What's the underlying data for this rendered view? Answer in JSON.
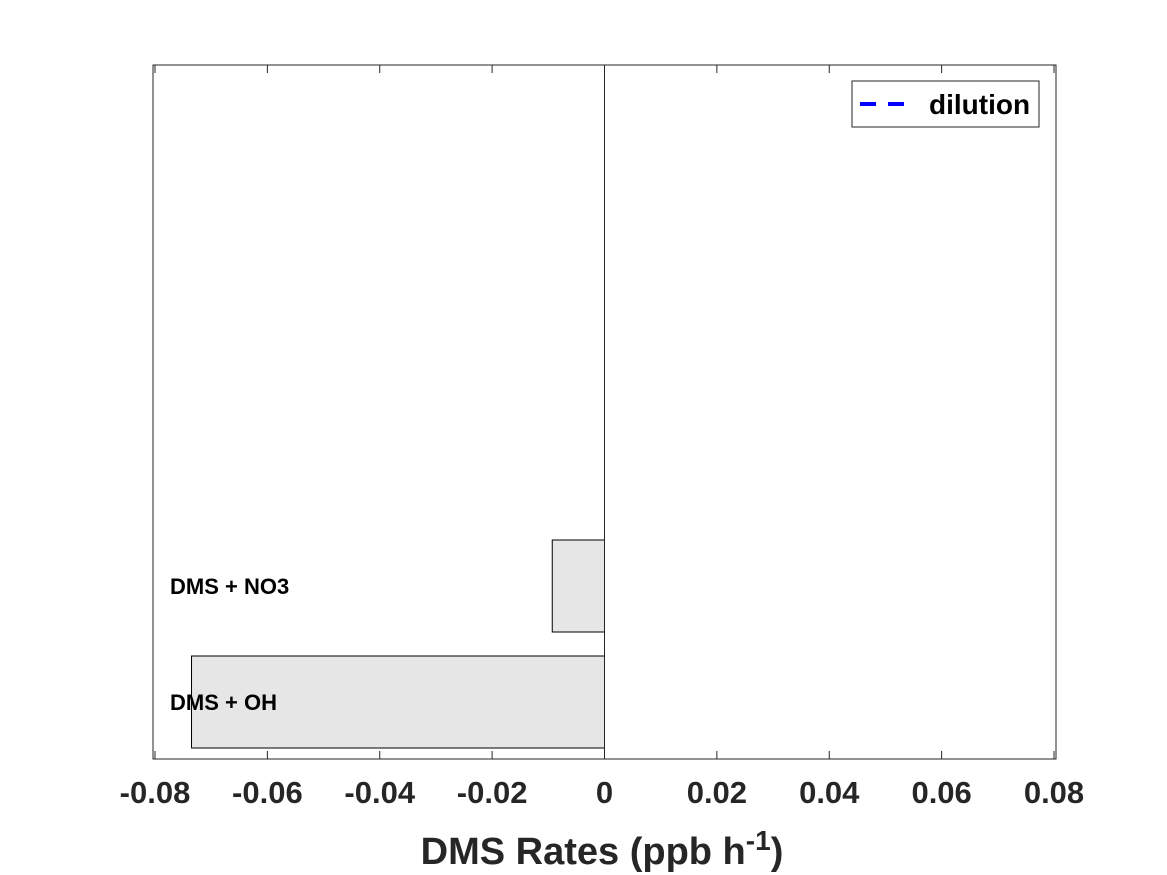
{
  "chart_data": {
    "type": "bar",
    "orientation": "horizontal",
    "categories": [
      "DMS + OH",
      "DMS + NO3"
    ],
    "values": [
      -0.0735,
      -0.0093
    ],
    "xlim": [
      -0.08,
      0.08
    ],
    "xticks": [
      -0.08,
      -0.06,
      -0.04,
      -0.02,
      0,
      0.02,
      0.04,
      0.06,
      0.08
    ],
    "xtick_labels": [
      "-0.08",
      "-0.06",
      "-0.04",
      "-0.02",
      "0",
      "0.02",
      "0.04",
      "0.06",
      "0.08"
    ],
    "xlabel": "DMS Rates (ppb h",
    "xlabel_superscript": "-1",
    "xlabel_suffix": ")",
    "bar_color": "#e6e6e6",
    "legend": {
      "entries": [
        {
          "name": "dilution",
          "color": "#0000ff",
          "style": "dashed"
        }
      ],
      "placement": "top-right"
    },
    "grid": false
  }
}
